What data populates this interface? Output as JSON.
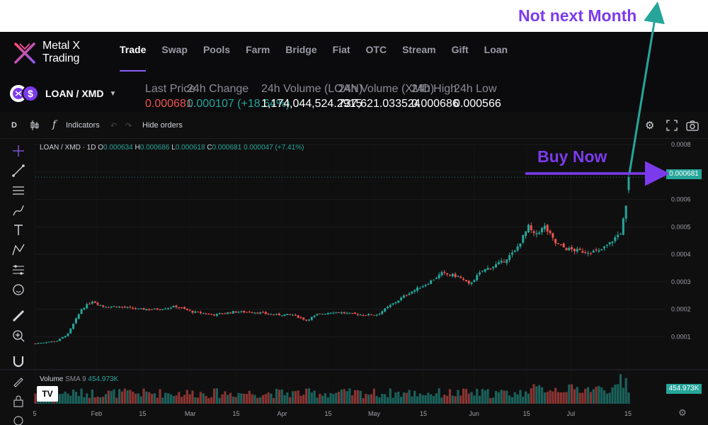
{
  "annotations": {
    "top": "Not next Month",
    "buy": "Buy Now"
  },
  "logo": {
    "line1": "Metal X",
    "line2": "Trading"
  },
  "nav": [
    {
      "label": "Trade",
      "active": true
    },
    {
      "label": "Swap"
    },
    {
      "label": "Pools"
    },
    {
      "label": "Farm"
    },
    {
      "label": "Bridge"
    },
    {
      "label": "Fiat"
    },
    {
      "label": "OTC"
    },
    {
      "label": "Stream"
    },
    {
      "label": "Gift"
    },
    {
      "label": "Loan"
    }
  ],
  "pair": {
    "label": "LOAN / XMD",
    "quote_symbol": "$"
  },
  "stats": [
    {
      "label": "Last Price",
      "value": "0.000681",
      "color": "red"
    },
    {
      "label": "24h Change",
      "value": "0.000107 (+18.64%)",
      "color": "green"
    },
    {
      "label": "24h Volume (LOAN)",
      "value": "1,174,044,524.2915",
      "color": "white"
    },
    {
      "label": "24h Volume (XMD)",
      "value": "737,621.033524",
      "color": "white"
    },
    {
      "label": "24h High",
      "value": "0.000686",
      "color": "white"
    },
    {
      "label": "24h Low",
      "value": "0.000566",
      "color": "white"
    }
  ],
  "toolbar": {
    "interval": "D",
    "indicators": "Indicators",
    "hide_orders": "Hide orders"
  },
  "legend": {
    "symbol": "LOAN / XMD · 1D",
    "o_label": "O",
    "o": "0.000634",
    "h_label": "H",
    "h": "0.000686",
    "l_label": "L",
    "l": "0.000618",
    "c_label": "C",
    "c": "0.000681",
    "change": "0.000047 (+7.41%)"
  },
  "volume_legend": {
    "label": "Volume",
    "sma": "SMA 9",
    "value": "454.973K"
  },
  "price_badge": "0.000681",
  "volume_badge": "454.973K",
  "colors": {
    "up": "#26a69a",
    "down": "#ef5350",
    "accent": "#7c3aed",
    "arrow": "#26a69a"
  },
  "chart_data": {
    "type": "candlestick",
    "title": "",
    "xlabel": "",
    "ylabel": "",
    "y_ticks": [
      "0.0001",
      "0.0002",
      "0.0003",
      "0.0004",
      "0.0005",
      "0.0006",
      "0.0007",
      "0.0008"
    ],
    "ylim": [
      0,
      0.0008
    ],
    "x_ticks": [
      "5",
      "Feb",
      "15",
      "Mar",
      "15",
      "Apr",
      "15",
      "May",
      "15",
      "Jun",
      "15",
      "Jul",
      "15"
    ],
    "grid": true,
    "close_path": [
      [
        0,
        7.5e-05
      ],
      [
        8,
        8.5e-05
      ],
      [
        12,
        0.00011
      ],
      [
        17,
        0.0002
      ],
      [
        21,
        0.00023
      ],
      [
        25,
        0.00021
      ],
      [
        30,
        0.00021
      ],
      [
        38,
        0.0002
      ],
      [
        45,
        0.0002
      ],
      [
        52,
        0.00021
      ],
      [
        58,
        0.00019
      ],
      [
        66,
        0.00018
      ],
      [
        73,
        0.00019
      ],
      [
        80,
        0.00019
      ],
      [
        88,
        0.00018
      ],
      [
        95,
        0.00018
      ],
      [
        100,
        0.00016
      ],
      [
        104,
        0.00018
      ],
      [
        110,
        0.00019
      ],
      [
        120,
        0.00018
      ],
      [
        126,
        0.00018
      ],
      [
        132,
        0.00022
      ],
      [
        138,
        0.00026
      ],
      [
        144,
        0.00029
      ],
      [
        150,
        0.00033
      ],
      [
        156,
        0.00032
      ],
      [
        160,
        0.00029
      ],
      [
        165,
        0.00034
      ],
      [
        172,
        0.00037
      ],
      [
        177,
        0.00041
      ],
      [
        182,
        0.0005
      ],
      [
        184,
        0.00047
      ],
      [
        188,
        0.0005
      ],
      [
        192,
        0.00044
      ],
      [
        196,
        0.00042
      ],
      [
        202,
        0.00041
      ],
      [
        208,
        0.00041
      ],
      [
        212,
        0.00044
      ],
      [
        216,
        0.00048
      ],
      [
        218,
        0.00057
      ],
      [
        219,
        0.000681
      ]
    ],
    "volume_label": "Volume SMA 9",
    "volume_last": "454.973K"
  }
}
